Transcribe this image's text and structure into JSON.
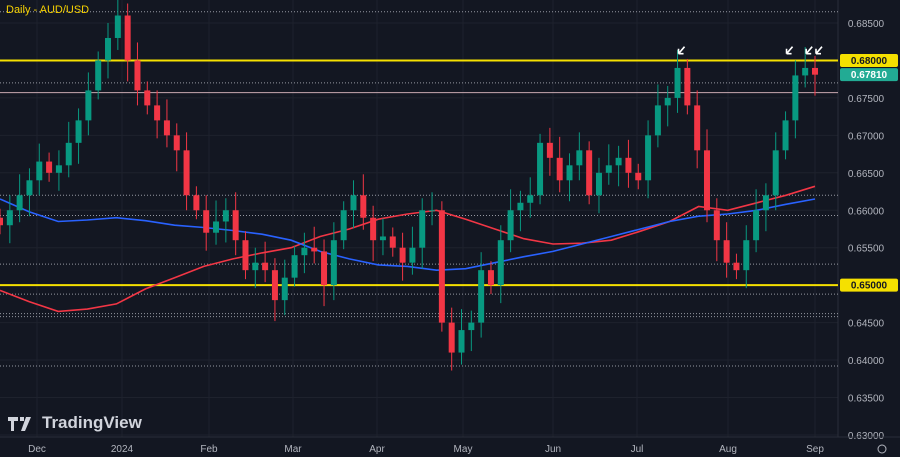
{
  "chart_data": {
    "type": "candlestick",
    "title": "Daily - AUD/USD",
    "x_tick_labels": [
      "Dec",
      "2024",
      "Feb",
      "Mar",
      "Apr",
      "May",
      "Jun",
      "Jul",
      "Aug",
      "Sep"
    ],
    "y_tick_labels": [
      "0.68500",
      "0.68000",
      "0.67500",
      "0.67000",
      "0.66500",
      "0.66000",
      "0.65500",
      "0.65000",
      "0.64500",
      "0.64000",
      "0.63500",
      "0.63000"
    ],
    "ylim": [
      0.6297,
      0.688
    ],
    "current_price": "0.67810",
    "closes": [
      0.658,
      0.66,
      0.662,
      0.664,
      0.6665,
      0.665,
      0.666,
      0.669,
      0.672,
      0.676,
      0.68,
      0.683,
      0.686,
      0.68,
      0.676,
      0.674,
      0.672,
      0.67,
      0.668,
      0.662,
      0.66,
      0.657,
      0.6585,
      0.66,
      0.656,
      0.652,
      0.653,
      0.652,
      0.648,
      0.651,
      0.654,
      0.655,
      0.6545,
      0.65,
      0.656,
      0.66,
      0.662,
      0.659,
      0.656,
      0.6565,
      0.655,
      0.653,
      0.655,
      0.66,
      0.66,
      0.645,
      0.641,
      0.644,
      0.645,
      0.652,
      0.65,
      0.656,
      0.66,
      0.661,
      0.662,
      0.669,
      0.667,
      0.664,
      0.666,
      0.668,
      0.662,
      0.665,
      0.666,
      0.667,
      0.665,
      0.664,
      0.67,
      0.674,
      0.675,
      0.679,
      0.674,
      0.668,
      0.66,
      0.656,
      0.653,
      0.652,
      0.656,
      0.66,
      0.662,
      0.668,
      0.672,
      0.678,
      0.679,
      0.6781
    ],
    "moving_averages": [
      {
        "color": "#f23645",
        "values": [
          0.6493,
          0.6478,
          0.6465,
          0.6468,
          0.6475,
          0.6495,
          0.651,
          0.6525,
          0.6535,
          0.6543,
          0.655,
          0.6565,
          0.6575,
          0.6588,
          0.6595,
          0.66,
          0.6588,
          0.6575,
          0.6562,
          0.6555,
          0.6556,
          0.656,
          0.6572,
          0.6585,
          0.6605,
          0.66,
          0.661,
          0.662,
          0.6632
        ]
      },
      {
        "color": "#2962ff",
        "values": [
          0.6615,
          0.6598,
          0.6585,
          0.6587,
          0.659,
          0.6586,
          0.658,
          0.6577,
          0.6573,
          0.6568,
          0.656,
          0.6545,
          0.6535,
          0.6527,
          0.6525,
          0.652,
          0.6522,
          0.653,
          0.6538,
          0.6545,
          0.6555,
          0.6565,
          0.6575,
          0.6585,
          0.6592,
          0.6595,
          0.66,
          0.6608,
          0.6615
        ]
      }
    ],
    "levels": {
      "yellow": [
        0.68,
        0.65
      ],
      "solid": [
        0.6757
      ],
      "dotted": [
        0.6865,
        0.677,
        0.662,
        0.6593,
        0.6528,
        0.6488,
        0.6462,
        0.6458,
        0.6392
      ]
    },
    "arrows_at_index": [
      69,
      80,
      82,
      83
    ],
    "colors": {
      "up": "#089981",
      "down": "#f23645",
      "yellow": "#f5e000",
      "price_label": "#22ab94"
    }
  },
  "branding": {
    "logo_text": "TradingView"
  }
}
